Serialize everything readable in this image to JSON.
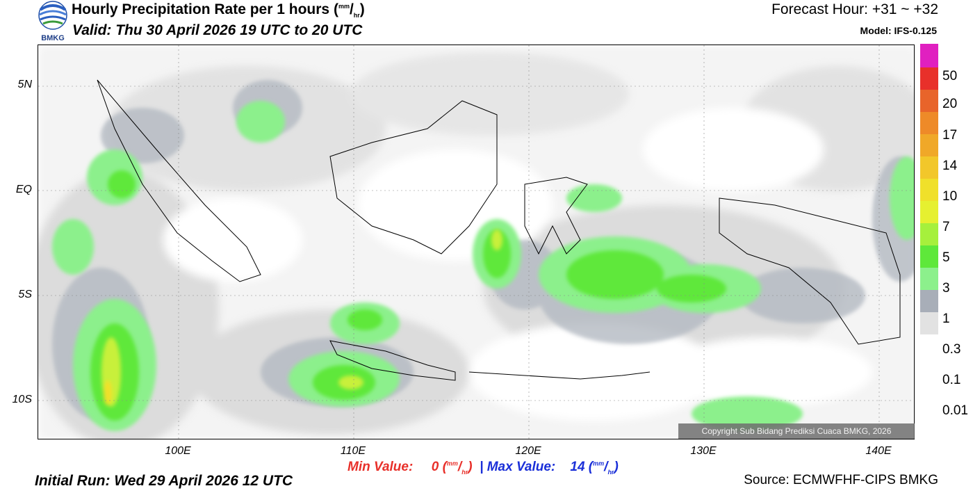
{
  "header": {
    "title": "Hourly Precipitation Rate per 1 hours",
    "unit_num": "mm",
    "unit_den": "hr",
    "valid": "Valid: Thu 30 April 2026 19 UTC to 20 UTC",
    "forecast_hour": "Forecast Hour: +31 ~ +32",
    "model": "Model: IFS-0.125"
  },
  "logo": {
    "text": "BMKG",
    "icon": "bmkg-logo-icon"
  },
  "map": {
    "lat_labels": [
      "5N",
      "EQ",
      "5S",
      "10S"
    ],
    "lon_labels": [
      "100E",
      "110E",
      "120E",
      "130E",
      "140E"
    ],
    "copyright": "Copyright Sub Bidang Prediksi Cuaca BMKG, 2026"
  },
  "legend": {
    "colors": [
      "#e020c0",
      "#e8302a",
      "#e8642a",
      "#ee8a28",
      "#f0a828",
      "#f2c72a",
      "#f0e02a",
      "#e6f030",
      "#a6f03c",
      "#5ee83a",
      "#8cf08c",
      "#a8aeb8",
      "#e2e2e2"
    ],
    "labels": [
      "50",
      "20",
      "17",
      "14",
      "10",
      "7",
      "5",
      "3",
      "1",
      "0.3",
      "0.1",
      "0.01"
    ]
  },
  "minmax": {
    "min_label": "Min Value:",
    "min_value": "0",
    "separator": "|",
    "max_label": "Max Value:",
    "max_value": "14"
  },
  "footer": {
    "initial_run": "Initial Run: Wed 29 April 2026 12 UTC",
    "source": "Source: ECMWFHF-CIPS BMKG"
  }
}
